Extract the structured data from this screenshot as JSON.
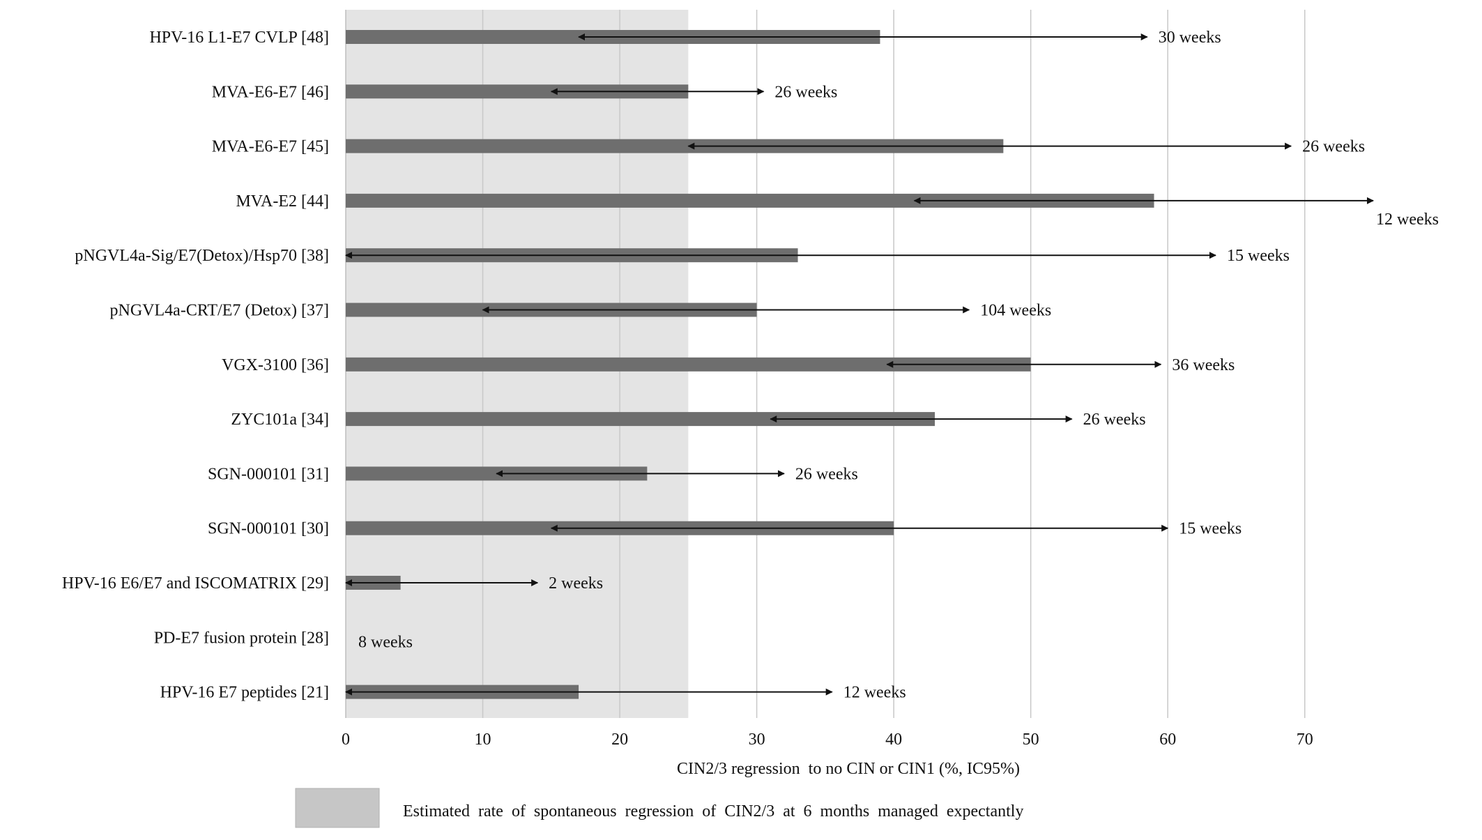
{
  "chart_data": {
    "type": "bar",
    "orientation": "horizontal",
    "xlabel": "CIN2/3 regression  to no CIN or CIN1 (%, IC95%)",
    "xlim": [
      0,
      75
    ],
    "xticks": [
      0,
      10,
      20,
      30,
      40,
      50,
      60,
      70
    ],
    "grid": true,
    "shaded_region": {
      "x": [
        0,
        25
      ],
      "color": "#e4e4e4",
      "legend_label": "Estimated  rate  of  spontaneous  regression  of  CIN2/3  at  6  months  managed  expectantly"
    },
    "bar_color": "#6e6e6e",
    "categories": [
      "HPV-16 L1-E7 CVLP [48]",
      "MVA-E6-E7 [46]",
      "MVA-E6-E7 [45]",
      "MVA-E2 [44]",
      "pNGVL4a-Sig/E7(Detox)/Hsp70 [38]",
      "pNGVL4a-CRT/E7 (Detox) [37]",
      "VGX-3100 [36]",
      "ZYC101a [34]",
      "SGN-000101 [31]",
      "SGN-000101 [30]",
      "HPV-16 E6/E7 and ISCOMATRIX [29]",
      "PD-E7 fusion protein [28]",
      "HPV-16 E7 peptides [21]"
    ],
    "values": [
      39,
      25,
      48,
      59,
      33,
      30,
      50,
      43,
      22,
      40,
      4,
      0,
      17
    ],
    "ci_lower": [
      17,
      15,
      25,
      41.5,
      0,
      10,
      39.5,
      31,
      11,
      15,
      0,
      null,
      0
    ],
    "ci_upper": [
      58.5,
      30.5,
      69,
      75,
      63.5,
      45.5,
      59.5,
      53,
      32,
      60,
      14,
      null,
      35.5
    ],
    "durations": [
      "30 weeks",
      "26 weeks",
      "26 weeks",
      "12 weeks",
      "15 weeks",
      "104 weeks",
      "36 weeks",
      "26 weeks",
      "26 weeks",
      "15 weeks",
      "2 weeks",
      "8 weeks",
      "12 weeks"
    ]
  }
}
